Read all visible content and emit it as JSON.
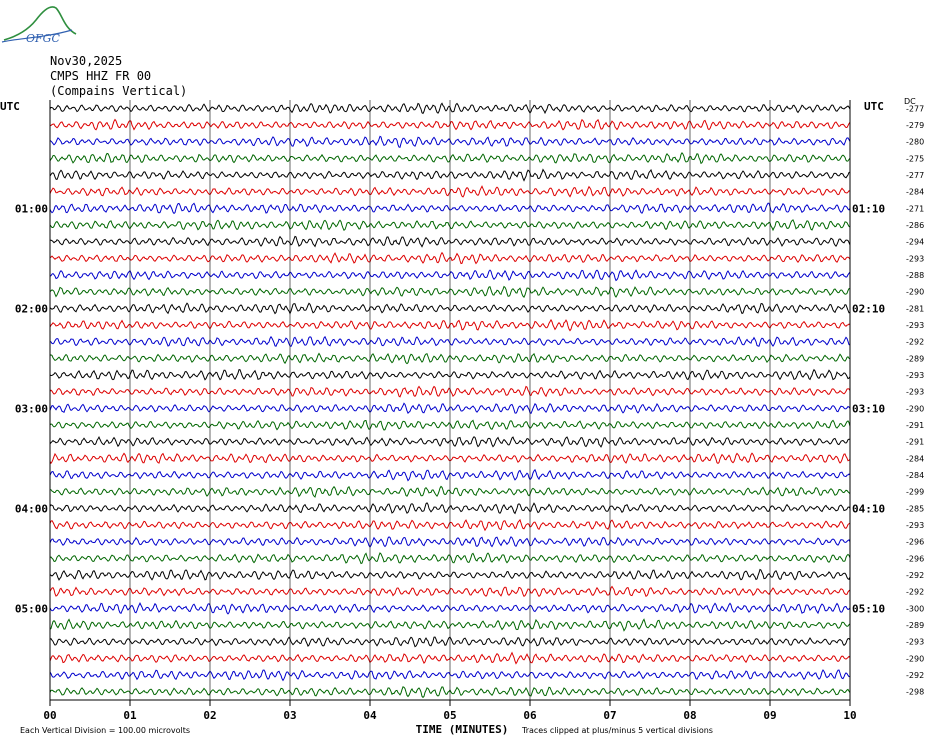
{
  "header": {
    "org_logo_text": "OFGC",
    "date": "Nov30,2025",
    "channel": "CMPS HHZ FR 00",
    "station_name": "(Compains Vertical)"
  },
  "chart_data": {
    "type": "line",
    "title": "",
    "xlabel": "TIME (MINUTES)",
    "xlim": [
      0,
      10
    ],
    "x_ticks": [
      "00",
      "01",
      "02",
      "03",
      "04",
      "05",
      "06",
      "07",
      "08",
      "09",
      "10"
    ],
    "left_axis_label": "UTC",
    "right_axis_label": "UTC",
    "dc_label": "DC",
    "left_time_labels": [
      {
        "row": 6,
        "label": "01:00"
      },
      {
        "row": 12,
        "label": "02:00"
      },
      {
        "row": 18,
        "label": "03:00"
      },
      {
        "row": 24,
        "label": "04:00"
      },
      {
        "row": 30,
        "label": "05:00"
      }
    ],
    "right_time_labels": [
      {
        "row": 6,
        "label": "01:10"
      },
      {
        "row": 12,
        "label": "02:10"
      },
      {
        "row": 18,
        "label": "03:10"
      },
      {
        "row": 24,
        "label": "04:10"
      },
      {
        "row": 30,
        "label": "05:10"
      }
    ],
    "trace_colors": [
      "#000000",
      "#dd0000",
      "#0000cc",
      "#006600"
    ],
    "dc_offsets": [
      -277,
      -279,
      -280,
      -275,
      -277,
      -284,
      -271,
      -286,
      -294,
      -293,
      -288,
      -290,
      -281,
      -293,
      -292,
      -289,
      -293,
      -293,
      -290,
      -291,
      -291,
      -284,
      -284,
      -299,
      -285,
      -293,
      -296,
      -296,
      -292,
      -292,
      -300,
      -289,
      -293,
      -290,
      -292,
      -298
    ],
    "footer_left": "Each Vertical Division =  100.00 microvolts",
    "footer_right": "Traces clipped at plus/minus 5 vertical divisions"
  },
  "colors": {
    "logo_green": "#2f8f3f",
    "logo_blue": "#3060b0",
    "grid": "#000000"
  }
}
